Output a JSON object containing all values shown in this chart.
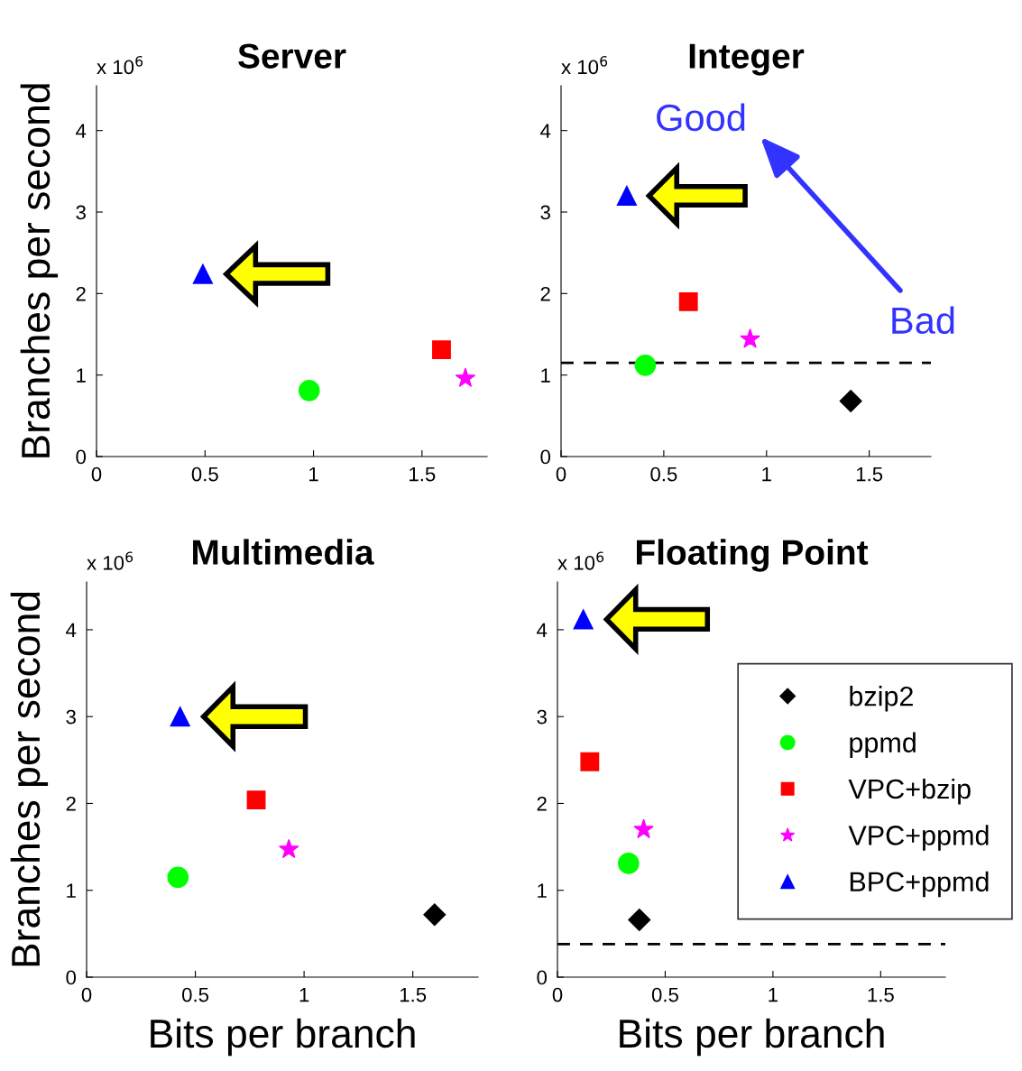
{
  "chart_data": [
    {
      "type": "scatter",
      "title": "Server",
      "ylabel": "Branches per second",
      "xlim": [
        0,
        1.8
      ],
      "ylim": [
        0,
        4.55
      ],
      "xticks": [
        0,
        0.5,
        1,
        1.5
      ],
      "yticks": [
        0,
        1,
        2,
        3,
        4
      ],
      "annotations": [
        "x 10$^{6}$"
      ],
      "legend": false,
      "grid": false,
      "series": [
        {
          "color": "#00ff00",
          "marker": "circle",
          "x": [
            0.98
          ],
          "values": [
            0.81
          ]
        },
        {
          "color": "#ff0000",
          "marker": "square",
          "x": [
            1.59
          ],
          "values": [
            1.31
          ]
        },
        {
          "color": "#ff00ff",
          "marker": "star",
          "x": [
            1.7
          ],
          "values": [
            0.96
          ]
        },
        {
          "color": "#0000ff",
          "marker": "triangle",
          "x": [
            0.49
          ],
          "values": [
            2.24
          ]
        }
      ]
    },
    {
      "type": "scatter",
      "title": "Integer",
      "xlim": [
        0,
        1.8
      ],
      "ylim": [
        0,
        4.55
      ],
      "xticks": [
        0,
        0.5,
        1,
        1.5
      ],
      "yticks": [
        0,
        1,
        2,
        3,
        4
      ],
      "annotations": [
        "x 10$^{6}$",
        "Good",
        "Bad"
      ],
      "legend": false,
      "grid": false,
      "ref_lines": [
        {
          "axis": "y",
          "value": 1.15,
          "color": "#000000",
          "line_style": "dashed"
        }
      ],
      "series": [
        {
          "color": "#000000",
          "marker": "diamond",
          "x": [
            1.41
          ],
          "values": [
            0.68
          ]
        },
        {
          "color": "#00ff00",
          "marker": "circle",
          "x": [
            0.41
          ],
          "values": [
            1.12
          ]
        },
        {
          "color": "#ff0000",
          "marker": "square",
          "x": [
            0.62
          ],
          "values": [
            1.9
          ]
        },
        {
          "color": "#ff00ff",
          "marker": "star",
          "x": [
            0.92
          ],
          "values": [
            1.44
          ]
        },
        {
          "color": "#0000ff",
          "marker": "triangle",
          "x": [
            0.32
          ],
          "values": [
            3.2
          ]
        }
      ]
    },
    {
      "type": "scatter",
      "title": "Multimedia",
      "xlabel": "Bits per branch",
      "ylabel": "Branches per second",
      "xlim": [
        0,
        1.8
      ],
      "ylim": [
        0,
        4.55
      ],
      "xticks": [
        0,
        0.5,
        1,
        1.5
      ],
      "yticks": [
        0,
        1,
        2,
        3,
        4
      ],
      "annotations": [
        "x 10$^{6}$"
      ],
      "legend": false,
      "grid": false,
      "series": [
        {
          "color": "#000000",
          "marker": "diamond",
          "x": [
            1.6
          ],
          "values": [
            0.72
          ]
        },
        {
          "color": "#00ff00",
          "marker": "circle",
          "x": [
            0.42
          ],
          "values": [
            1.15
          ]
        },
        {
          "color": "#ff0000",
          "marker": "square",
          "x": [
            0.78
          ],
          "values": [
            2.04
          ]
        },
        {
          "color": "#ff00ff",
          "marker": "star",
          "x": [
            0.93
          ],
          "values": [
            1.47
          ]
        },
        {
          "color": "#0000ff",
          "marker": "triangle",
          "x": [
            0.43
          ],
          "values": [
            3.0
          ]
        }
      ]
    },
    {
      "type": "scatter",
      "title": "Floating Point",
      "xlabel": "Bits per branch",
      "xlim": [
        0,
        1.8
      ],
      "ylim": [
        0,
        4.55
      ],
      "xticks": [
        0,
        0.5,
        1,
        1.5
      ],
      "yticks": [
        0,
        1,
        2,
        3,
        4
      ],
      "annotations": [
        "x 10$^{6}$"
      ],
      "legend": "right",
      "grid": false,
      "ref_lines": [
        {
          "axis": "y",
          "value": 0.38,
          "color": "#000000",
          "line_style": "dashed"
        }
      ],
      "series": [
        {
          "name": "bzip2",
          "color": "#000000",
          "marker": "diamond",
          "x": [
            0.38
          ],
          "values": [
            0.66
          ]
        },
        {
          "name": "ppmd",
          "color": "#00ff00",
          "marker": "circle",
          "x": [
            0.33
          ],
          "values": [
            1.31
          ]
        },
        {
          "name": "VPC+bzip",
          "color": "#ff0000",
          "marker": "square",
          "x": [
            0.15
          ],
          "values": [
            2.48
          ]
        },
        {
          "name": "VPC+ppmd",
          "color": "#ff00ff",
          "marker": "star",
          "x": [
            0.4
          ],
          "values": [
            1.7
          ]
        },
        {
          "name": "BPC+ppmd",
          "color": "#0000ff",
          "marker": "triangle",
          "x": [
            0.12
          ],
          "values": [
            4.12
          ]
        }
      ]
    }
  ]
}
